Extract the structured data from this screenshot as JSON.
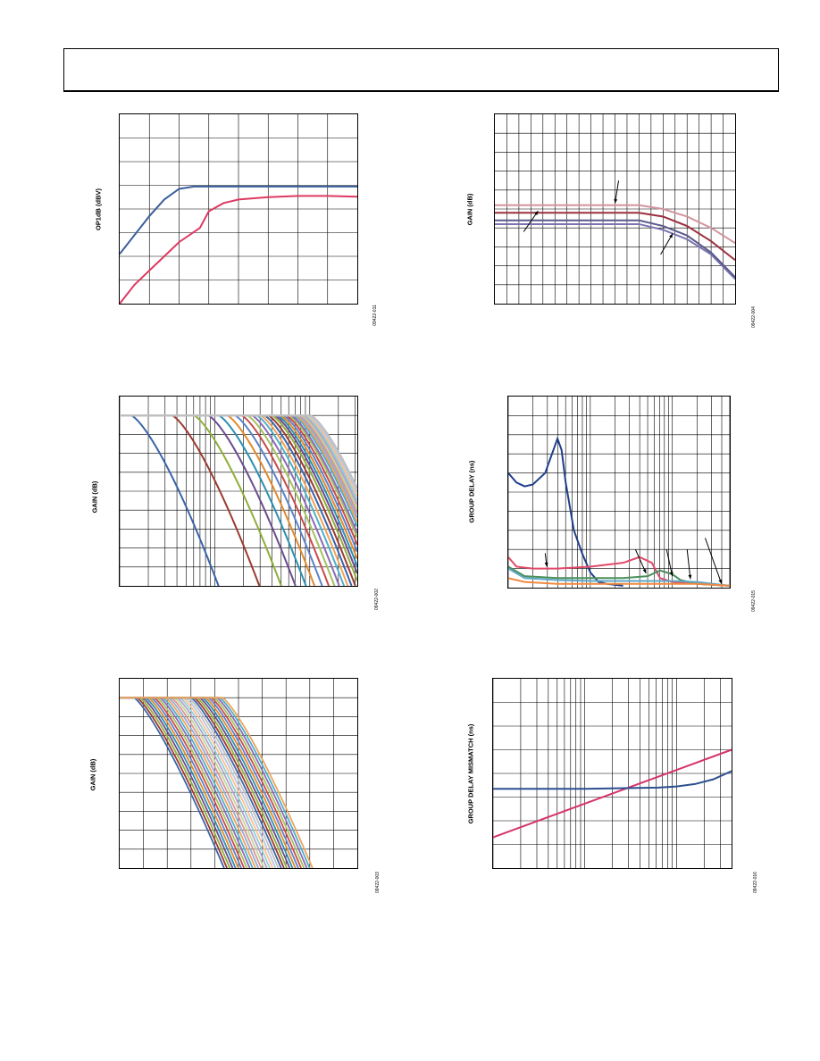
{
  "chart_data": [
    {
      "id": "p011",
      "type": "line",
      "ylabel": "OP1dB (dBV)",
      "fig_id": "09422-011",
      "xlim": [
        0,
        8
      ],
      "ylim": [
        -8,
        0
      ],
      "grid": {
        "xlines": 8,
        "ylines": 8
      },
      "series": [
        {
          "color": "#3d5f9c",
          "x": [
            0,
            0.5,
            1,
            1.5,
            2,
            2.5,
            3,
            8
          ],
          "y": [
            -5.9,
            -5.1,
            -4.3,
            -3.6,
            -3.15,
            -3.05,
            -3.05,
            -3.05
          ]
        },
        {
          "color": "#dd3a62",
          "x": [
            0,
            0.5,
            1,
            1.5,
            2,
            2.7,
            3,
            3.5,
            4,
            5,
            6,
            7,
            8
          ],
          "y": [
            -8,
            -7.2,
            -6.6,
            -6,
            -5.4,
            -4.8,
            -4.1,
            -3.75,
            -3.6,
            -3.5,
            -3.45,
            -3.45,
            -3.48
          ]
        }
      ]
    },
    {
      "id": "p004",
      "type": "line",
      "ylabel": "GAIN (dB)",
      "fig_id": "09422-004",
      "xlim": [
        0,
        20
      ],
      "ylim": [
        0,
        10
      ],
      "grid": {
        "xlines": 20,
        "ylines": 10
      },
      "series": [
        {
          "color": "#d4949e",
          "x": [
            0,
            12,
            14,
            16,
            18,
            20
          ],
          "y": [
            5.2,
            5.2,
            5.0,
            4.6,
            4.0,
            3.2
          ]
        },
        {
          "color": "#9b3040",
          "x": [
            0,
            12,
            14,
            16,
            18,
            20
          ],
          "y": [
            4.8,
            4.8,
            4.6,
            4.1,
            3.3,
            2.3
          ]
        },
        {
          "color": "#7a74b0",
          "x": [
            0,
            12,
            14,
            16,
            18,
            20
          ],
          "y": [
            4.2,
            4.2,
            3.9,
            3.4,
            2.6,
            1.3
          ]
        },
        {
          "color": "#5a5a8a",
          "x": [
            0,
            12,
            14,
            16,
            18,
            20
          ],
          "y": [
            4.4,
            4.4,
            4.1,
            3.6,
            2.7,
            1.4
          ]
        }
      ]
    },
    {
      "id": "p002",
      "type": "line",
      "ylabel": "GAIN (dB)",
      "fig_id": "09422-002",
      "xlim": [
        0,
        2.5
      ],
      "ylim": [
        -20,
        0
      ],
      "xscale": "log",
      "grid": {
        "decades": [
          0,
          1,
          2
        ],
        "ylines": 10
      },
      "series": [
        {
          "color": "#3a64a8",
          "corner": 0.12,
          "flat": -2
        },
        {
          "color": "#9b3a30",
          "corner": 0.55,
          "flat": -2
        },
        {
          "color": "#8fae3a",
          "corner": 0.78,
          "flat": -2
        },
        {
          "color": "#6b4b8f",
          "corner": 0.93,
          "flat": -2
        },
        {
          "color": "#2c8fb0",
          "corner": 1.04,
          "flat": -2
        },
        {
          "color": "#e08a2c",
          "corner": 1.13,
          "flat": -2
        },
        {
          "color": "#5d82c8",
          "corner": 1.21,
          "flat": -2
        },
        {
          "color": "#c84b4b",
          "corner": 1.28,
          "flat": -2
        },
        {
          "color": "#a3c25d",
          "corner": 1.34,
          "flat": -2
        },
        {
          "color": "#8b6bb8",
          "corner": 1.39,
          "flat": -2
        },
        {
          "color": "#4fb0c8",
          "corner": 1.44,
          "flat": -2
        },
        {
          "color": "#f0a35b",
          "corner": 1.48,
          "flat": -2
        },
        {
          "color": "#3a64a8",
          "corner": 1.52,
          "flat": -2
        },
        {
          "color": "#9b3a30",
          "corner": 1.56,
          "flat": -2
        },
        {
          "color": "#8fae3a",
          "corner": 1.6,
          "flat": -2
        },
        {
          "color": "#6b4b8f",
          "corner": 1.63,
          "flat": -2
        },
        {
          "color": "#2c8fb0",
          "corner": 1.66,
          "flat": -2
        },
        {
          "color": "#e08a2c",
          "corner": 1.69,
          "flat": -2
        },
        {
          "color": "#5d82c8",
          "corner": 1.72,
          "flat": -2
        },
        {
          "color": "#c84b4b",
          "corner": 1.75,
          "flat": -2
        },
        {
          "color": "#a3c25d",
          "corner": 1.78,
          "flat": -2
        },
        {
          "color": "#8b6bb8",
          "corner": 1.8,
          "flat": -2
        },
        {
          "color": "#4fb0c8",
          "corner": 1.83,
          "flat": -2
        },
        {
          "color": "#f0a35b",
          "corner": 1.85,
          "flat": -2
        },
        {
          "color": "#93acd6",
          "corner": 1.87,
          "flat": -2
        },
        {
          "color": "#d99594",
          "corner": 1.89,
          "flat": -2
        },
        {
          "color": "#c3d69b",
          "corner": 1.91,
          "flat": -2
        },
        {
          "color": "#b3a2c7",
          "corner": 1.93,
          "flat": -2
        },
        {
          "color": "#92cddc",
          "corner": 1.95,
          "flat": -2
        },
        {
          "color": "#fac090",
          "corner": 1.97,
          "flat": -2
        },
        {
          "color": "#b9c7e0",
          "corner": 1.99,
          "flat": -2
        },
        {
          "color": "#c0c0c0",
          "corner": 2.01,
          "flat": -2
        }
      ]
    },
    {
      "id": "p015",
      "type": "line",
      "ylabel": "GROUP DELAY (ns)",
      "fig_id": "09422-015",
      "xlim": [
        0,
        2.7
      ],
      "ylim": [
        0,
        10
      ],
      "xscale": "log",
      "grid": {
        "decades": [
          0,
          1,
          2
        ],
        "ylines": 10
      },
      "series": [
        {
          "color": "#1f3f8c",
          "x": [
            0,
            0.1,
            0.2,
            0.3,
            0.45,
            0.55,
            0.6,
            0.65,
            0.7,
            0.8,
            0.9,
            1.0,
            1.1,
            1.2,
            1.4
          ],
          "y": [
            6.0,
            5.5,
            5.3,
            5.4,
            6.0,
            7.2,
            7.8,
            7.2,
            5.5,
            3.0,
            1.8,
            0.8,
            0.3,
            0.2,
            0.1
          ]
        },
        {
          "color": "#e04a6a",
          "x": [
            0,
            0.1,
            0.3,
            0.6,
            1.0,
            1.4,
            1.6,
            1.75,
            1.85,
            2.0,
            2.3,
            2.7
          ],
          "y": [
            1.6,
            1.1,
            1.0,
            1.0,
            1.1,
            1.3,
            1.6,
            1.3,
            0.5,
            0.3,
            0.2,
            0.1
          ]
        },
        {
          "color": "#4b8f5a",
          "x": [
            0,
            0.2,
            0.6,
            1.0,
            1.4,
            1.7,
            1.85,
            2.0,
            2.1,
            2.3,
            2.7
          ],
          "y": [
            1.1,
            0.6,
            0.5,
            0.5,
            0.5,
            0.6,
            0.9,
            0.7,
            0.4,
            0.2,
            0.1
          ]
        },
        {
          "color": "#5fa8c8",
          "x": [
            0,
            0.2,
            0.6,
            1.0,
            1.5,
            2.0,
            2.3,
            2.5,
            2.7
          ],
          "y": [
            1.0,
            0.5,
            0.4,
            0.35,
            0.35,
            0.35,
            0.3,
            0.2,
            0.1
          ]
        },
        {
          "color": "#f08a40",
          "x": [
            0,
            0.2,
            0.6,
            1.0,
            1.5,
            2.0,
            2.3,
            2.5,
            2.7
          ],
          "y": [
            0.5,
            0.3,
            0.2,
            0.2,
            0.2,
            0.2,
            0.2,
            0.15,
            0.1
          ]
        }
      ],
      "arrows": [
        {
          "from": [
            0.45,
            1.8
          ],
          "to": [
            0.47,
            1.1
          ]
        },
        {
          "from": [
            1.55,
            2.0
          ],
          "to": [
            1.68,
            0.75
          ]
        },
        {
          "from": [
            1.93,
            2.0
          ],
          "to": [
            2.0,
            0.6
          ]
        },
        {
          "from": [
            2.18,
            2.0
          ],
          "to": [
            2.22,
            0.45
          ]
        },
        {
          "from": [
            2.4,
            2.6
          ],
          "to": [
            2.6,
            0.2
          ]
        }
      ]
    },
    {
      "id": "p003",
      "type": "line",
      "ylabel": "GAIN (dB)",
      "fig_id": "09422-003",
      "xlim": [
        0,
        10
      ],
      "ylim": [
        -20,
        0
      ],
      "grid": {
        "xlines": 10,
        "ylines": 10
      },
      "series_count": 32,
      "palette": [
        "#3a64a8",
        "#9b3a30",
        "#8fae3a",
        "#6b4b8f",
        "#2c8fb0",
        "#e08a2c",
        "#5d82c8",
        "#c84b4b",
        "#a3c25d",
        "#8b6bb8",
        "#4fb0c8",
        "#f0a35b",
        "#93acd6",
        "#d99594",
        "#c3d69b",
        "#b3a2c7",
        "#92cddc",
        "#fac090",
        "#b9c7e0",
        "#c0c0c0"
      ]
    },
    {
      "id": "p016",
      "type": "line",
      "ylabel": "GROUP DELAY MISMATCH (ns)",
      "fig_id": "09422-016",
      "xlim": [
        0,
        2.6
      ],
      "ylim": [
        0,
        8
      ],
      "xscale": "log",
      "grid": {
        "decades": [
          0,
          1,
          2
        ],
        "ylines": 8
      },
      "series": [
        {
          "color": "#d6336c",
          "x": [
            0,
            2.6
          ],
          "y": [
            1.3,
            5.0
          ]
        },
        {
          "color": "#2c4f8f",
          "x": [
            0,
            1.0,
            1.5,
            1.8,
            2.0,
            2.2,
            2.4,
            2.6
          ],
          "y": [
            3.35,
            3.35,
            3.38,
            3.4,
            3.45,
            3.55,
            3.75,
            4.1
          ]
        }
      ]
    }
  ]
}
